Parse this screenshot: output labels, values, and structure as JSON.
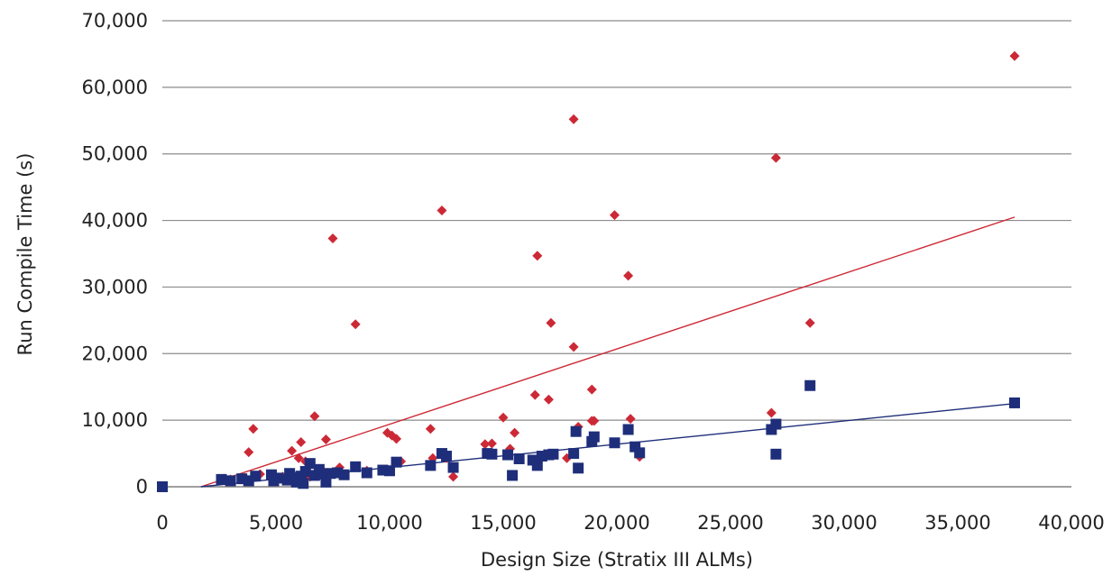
{
  "chart_data": {
    "type": "scatter",
    "title": "",
    "xlabel": "Design Size (Stratix III ALMs)",
    "ylabel": "Run Compile Time (s)",
    "xlim": [
      0,
      40000
    ],
    "ylim": [
      0,
      70000
    ],
    "x_ticks": [
      0,
      5000,
      10000,
      15000,
      20000,
      25000,
      30000,
      35000,
      40000
    ],
    "x_tick_labels": [
      "0",
      "5,000",
      "10,000",
      "15,000",
      "20,000",
      "25,000",
      "30,000",
      "35,000",
      "40,000"
    ],
    "y_ticks": [
      0,
      10000,
      20000,
      30000,
      40000,
      50000,
      60000,
      70000
    ],
    "y_tick_labels": [
      "0",
      "10,000",
      "20,000",
      "30,000",
      "40,000",
      "50,000",
      "60,000",
      "70,000"
    ],
    "grid": "horizontal",
    "legend": "none",
    "series": [
      {
        "marker": "diamond",
        "color": "#cc2936",
        "points": [
          [
            2700,
            1200
          ],
          [
            3000,
            1100
          ],
          [
            3800,
            5200
          ],
          [
            4000,
            8700
          ],
          [
            4300,
            1900
          ],
          [
            5300,
            1500
          ],
          [
            5700,
            5400
          ],
          [
            6000,
            4300
          ],
          [
            6100,
            6700
          ],
          [
            6300,
            3800
          ],
          [
            6500,
            1500
          ],
          [
            6700,
            10600
          ],
          [
            7000,
            2600
          ],
          [
            7200,
            7100
          ],
          [
            7500,
            37300
          ],
          [
            7800,
            2900
          ],
          [
            8500,
            24400
          ],
          [
            9000,
            2400
          ],
          [
            9900,
            8100
          ],
          [
            10100,
            7700
          ],
          [
            10300,
            7200
          ],
          [
            10500,
            3800
          ],
          [
            11800,
            8700
          ],
          [
            11900,
            4300
          ],
          [
            12300,
            41500
          ],
          [
            12500,
            4300
          ],
          [
            12800,
            1500
          ],
          [
            14200,
            6400
          ],
          [
            14500,
            6500
          ],
          [
            15000,
            10400
          ],
          [
            15500,
            8100
          ],
          [
            15300,
            5700
          ],
          [
            16400,
            13800
          ],
          [
            16500,
            34700
          ],
          [
            17000,
            13100
          ],
          [
            17100,
            24600
          ],
          [
            17800,
            4300
          ],
          [
            18100,
            21000
          ],
          [
            18100,
            55200
          ],
          [
            18300,
            9000
          ],
          [
            18900,
            9900
          ],
          [
            18900,
            14600
          ],
          [
            19000,
            9900
          ],
          [
            19900,
            40800
          ],
          [
            20500,
            31700
          ],
          [
            20600,
            10200
          ],
          [
            21000,
            4500
          ],
          [
            26800,
            11100
          ],
          [
            27000,
            49400
          ],
          [
            28500,
            24600
          ],
          [
            37500,
            64700
          ]
        ],
        "trend": [
          [
            1700,
            0
          ],
          [
            37500,
            40500
          ]
        ]
      },
      {
        "marker": "square",
        "color": "#1f2e7a",
        "points": [
          [
            0,
            0
          ],
          [
            2600,
            1100
          ],
          [
            3000,
            900
          ],
          [
            3500,
            1200
          ],
          [
            3800,
            900
          ],
          [
            4100,
            1600
          ],
          [
            4800,
            1800
          ],
          [
            4900,
            900
          ],
          [
            5100,
            1300
          ],
          [
            5500,
            1000
          ],
          [
            5600,
            2000
          ],
          [
            5700,
            1400
          ],
          [
            5900,
            700
          ],
          [
            6100,
            1600
          ],
          [
            6200,
            500
          ],
          [
            6300,
            2300
          ],
          [
            6500,
            3500
          ],
          [
            6700,
            1700
          ],
          [
            6900,
            2600
          ],
          [
            7100,
            1900
          ],
          [
            7200,
            700
          ],
          [
            7400,
            2000
          ],
          [
            7700,
            2100
          ],
          [
            8000,
            1800
          ],
          [
            8500,
            3000
          ],
          [
            9000,
            2100
          ],
          [
            9700,
            2500
          ],
          [
            10000,
            2400
          ],
          [
            10300,
            3700
          ],
          [
            11800,
            3200
          ],
          [
            12300,
            5000
          ],
          [
            12500,
            4600
          ],
          [
            12800,
            2900
          ],
          [
            14300,
            5000
          ],
          [
            14500,
            4900
          ],
          [
            15200,
            4800
          ],
          [
            15400,
            1700
          ],
          [
            15700,
            4200
          ],
          [
            16300,
            4000
          ],
          [
            16500,
            3200
          ],
          [
            16700,
            4600
          ],
          [
            17000,
            4800
          ],
          [
            17200,
            4900
          ],
          [
            18100,
            5000
          ],
          [
            18200,
            8300
          ],
          [
            18300,
            2800
          ],
          [
            18900,
            6800
          ],
          [
            19000,
            7500
          ],
          [
            19900,
            6600
          ],
          [
            20500,
            8600
          ],
          [
            20800,
            6000
          ],
          [
            21000,
            5100
          ],
          [
            26800,
            8600
          ],
          [
            27000,
            9400
          ],
          [
            27000,
            4900
          ],
          [
            28500,
            15200
          ],
          [
            37500,
            12600
          ]
        ],
        "trend": [
          [
            1700,
            0
          ],
          [
            37500,
            12500
          ]
        ]
      }
    ]
  }
}
